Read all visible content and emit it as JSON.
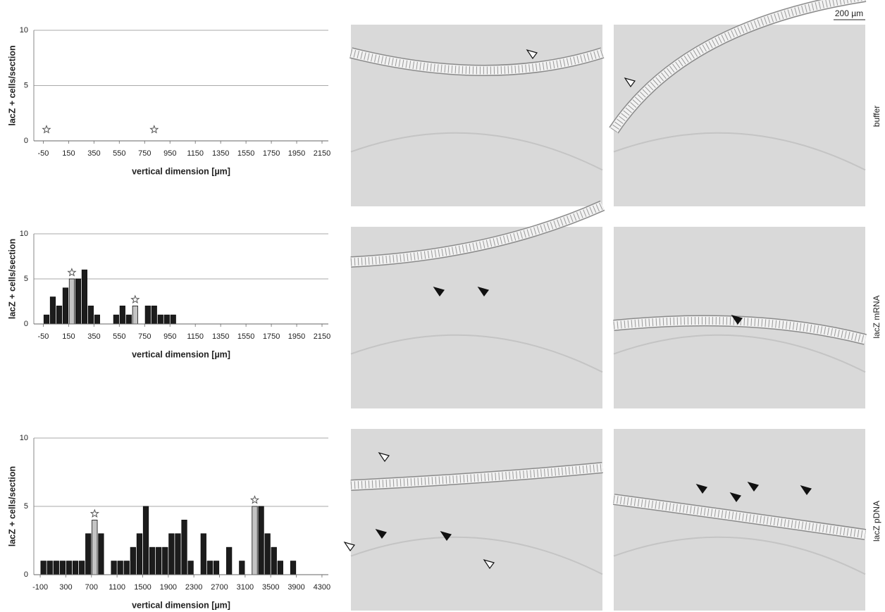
{
  "chart_data": [
    {
      "type": "bar",
      "y_label": "lacZ + cells/section",
      "x_label": "vertical dimension [µm]",
      "xlim": [
        -125,
        2200
      ],
      "xticks": [
        -50,
        150,
        350,
        550,
        750,
        950,
        1150,
        1350,
        1550,
        1750,
        1950,
        2150
      ],
      "ylim": [
        0,
        10
      ],
      "yticks": [
        0,
        5,
        10
      ],
      "grid": true,
      "x": [],
      "values": [],
      "colors": [],
      "stars": [
        -25,
        825
      ]
    },
    {
      "type": "bar",
      "y_label": "lacZ + cells/section",
      "x_label": "vertical dimension [µm]",
      "xlim": [
        -125,
        2200
      ],
      "xticks": [
        -50,
        150,
        350,
        550,
        750,
        950,
        1150,
        1350,
        1550,
        1750,
        1950,
        2150
      ],
      "ylim": [
        0,
        10
      ],
      "yticks": [
        0,
        5,
        10
      ],
      "grid": true,
      "x": [
        -25,
        25,
        75,
        125,
        175,
        225,
        275,
        325,
        375,
        525,
        575,
        625,
        675,
        775,
        825,
        875,
        925,
        975
      ],
      "values": [
        1,
        3,
        2,
        4,
        5,
        5,
        6,
        2,
        1,
        1,
        2,
        1,
        2,
        2,
        2,
        1,
        1,
        1
      ],
      "colors": [
        "#1c1c1c",
        "#1c1c1c",
        "#1c1c1c",
        "#1c1c1c",
        "#c4c4c4",
        "#1c1c1c",
        "#1c1c1c",
        "#1c1c1c",
        "#1c1c1c",
        "#1c1c1c",
        "#1c1c1c",
        "#1c1c1c",
        "#c4c4c4",
        "#1c1c1c",
        "#1c1c1c",
        "#1c1c1c",
        "#1c1c1c",
        "#1c1c1c"
      ],
      "stars": [
        175,
        675
      ]
    },
    {
      "type": "bar",
      "y_label": "lacZ + cells/section",
      "x_label": "vertical dimension [µm]",
      "xlim": [
        -200,
        4400
      ],
      "xticks": [
        -100,
        300,
        700,
        1100,
        1500,
        1900,
        2300,
        2700,
        3100,
        3500,
        3900,
        4300
      ],
      "ylim": [
        0,
        10
      ],
      "yticks": [
        0,
        5,
        10
      ],
      "grid": true,
      "x": [
        -50,
        50,
        150,
        250,
        350,
        450,
        550,
        650,
        750,
        850,
        1050,
        1150,
        1250,
        1350,
        1450,
        1550,
        1650,
        1750,
        1850,
        1950,
        2050,
        2150,
        2250,
        2450,
        2550,
        2650,
        2850,
        3050,
        3250,
        3350,
        3450,
        3550,
        3650,
        3850
      ],
      "values": [
        1,
        1,
        1,
        1,
        1,
        1,
        1,
        3,
        4,
        3,
        1,
        1,
        1,
        2,
        3,
        5,
        2,
        2,
        2,
        3,
        3,
        4,
        1,
        3,
        1,
        1,
        2,
        1,
        5,
        5,
        3,
        2,
        1,
        1
      ],
      "colors": [
        "#1c1c1c",
        "#1c1c1c",
        "#1c1c1c",
        "#1c1c1c",
        "#1c1c1c",
        "#1c1c1c",
        "#1c1c1c",
        "#1c1c1c",
        "#c4c4c4",
        "#1c1c1c",
        "#1c1c1c",
        "#1c1c1c",
        "#1c1c1c",
        "#1c1c1c",
        "#1c1c1c",
        "#1c1c1c",
        "#1c1c1c",
        "#1c1c1c",
        "#1c1c1c",
        "#1c1c1c",
        "#1c1c1c",
        "#1c1c1c",
        "#1c1c1c",
        "#1c1c1c",
        "#1c1c1c",
        "#1c1c1c",
        "#1c1c1c",
        "#1c1c1c",
        "#c4c4c4",
        "#1c1c1c",
        "#1c1c1c",
        "#1c1c1c",
        "#1c1c1c",
        "#1c1c1c"
      ],
      "stars": [
        750,
        3250
      ]
    }
  ],
  "row_labels": [
    "buffer",
    "lacZ mRNA",
    "lacZ pDNA"
  ],
  "scale_bar": "200 µm"
}
